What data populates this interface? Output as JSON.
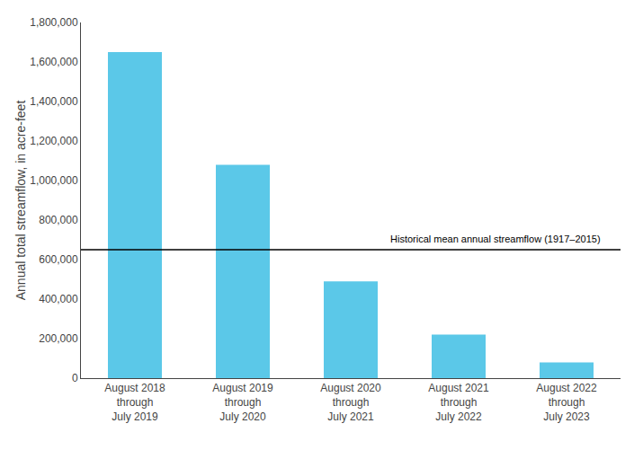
{
  "chart_data": {
    "type": "bar",
    "categories": [
      "August 2018\nthrough\nJuly 2019",
      "August 2019\nthrough\nJuly 2020",
      "August 2020\nthrough\nJuly 2021",
      "August 2021\nthrough\nJuly 2022",
      "August 2022\nthrough\nJuly 2023"
    ],
    "values": [
      1650000,
      1080000,
      490000,
      220000,
      80000
    ],
    "color": "#5BC8E8",
    "reference_line": {
      "value": 650000,
      "label": "Historical mean annual streamflow (1917–2015)",
      "color": "#000000"
    },
    "ylabel": "Annual total streamflow, in acre-feet",
    "ylim": [
      0,
      1800000
    ],
    "yticks": [
      0,
      {
        "value": 200000,
        "label": "200,000"
      },
      {
        "value": 400000,
        "label": "400,000"
      },
      {
        "value": 600000,
        "label": "600,000"
      },
      {
        "value": 800000,
        "label": "800,000"
      },
      {
        "value": 1000000,
        "label": "1,000,000"
      },
      {
        "value": 1200000,
        "label": "1,200,000"
      },
      {
        "value": 1400000,
        "label": "1,400,000"
      },
      {
        "value": 1600000,
        "label": "1,600,000"
      },
      {
        "value": 1800000,
        "label": "1,800,000"
      }
    ],
    "grid": false
  }
}
